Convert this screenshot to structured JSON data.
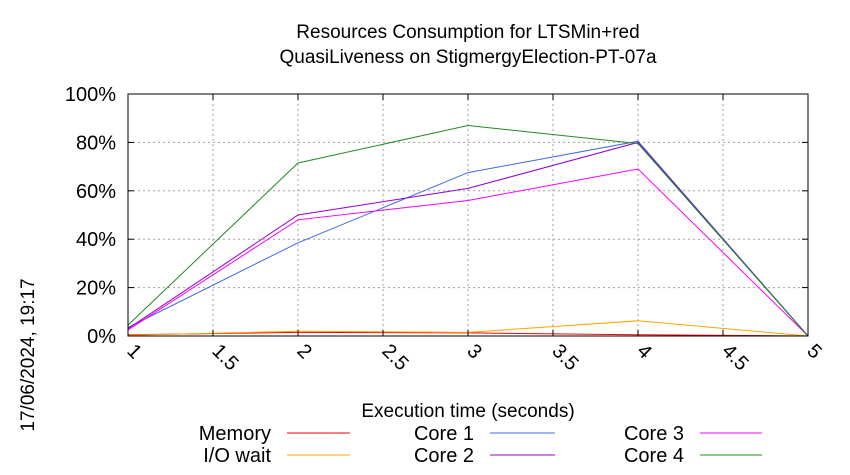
{
  "chart_data": {
    "type": "line",
    "title": [
      "Resources Consumption for LTSMin+red",
      "QuasiLiveness on StigmergyElection-PT-07a"
    ],
    "xlabel": "Execution time (seconds)",
    "ylabel": "",
    "timestamp": "17/06/2024, 19:17",
    "xlim": [
      1,
      5
    ],
    "ylim": [
      0,
      100
    ],
    "x_ticks": [
      "1",
      "1.5",
      "2",
      "2.5",
      "3",
      "3.5",
      "4",
      "4.5",
      "5"
    ],
    "y_ticks": [
      "0%",
      "20%",
      "40%",
      "60%",
      "80%",
      "100%"
    ],
    "grid": true,
    "legend_position": "bottom",
    "x": [
      1,
      2,
      3,
      4,
      5
    ],
    "series": [
      {
        "name": "Memory",
        "color": "#ff0000",
        "values": [
          0.5,
          1.5,
          1.3,
          0.5,
          0
        ]
      },
      {
        "name": "I/O wait",
        "color": "#ffa500",
        "values": [
          0.3,
          2.0,
          1.5,
          6.3,
          0
        ]
      },
      {
        "name": "Core 1",
        "color": "#4169e1",
        "values": [
          3.5,
          38.5,
          67.5,
          80.5,
          0
        ]
      },
      {
        "name": "Core 2",
        "color": "#9400d3",
        "values": [
          3,
          50,
          61,
          80,
          0
        ]
      },
      {
        "name": "Core 3",
        "color": "#ff00ff",
        "values": [
          2.5,
          48,
          56,
          69,
          0
        ]
      },
      {
        "name": "Core 4",
        "color": "#228b22",
        "values": [
          4.5,
          71.5,
          87,
          79.5,
          0
        ]
      }
    ]
  }
}
